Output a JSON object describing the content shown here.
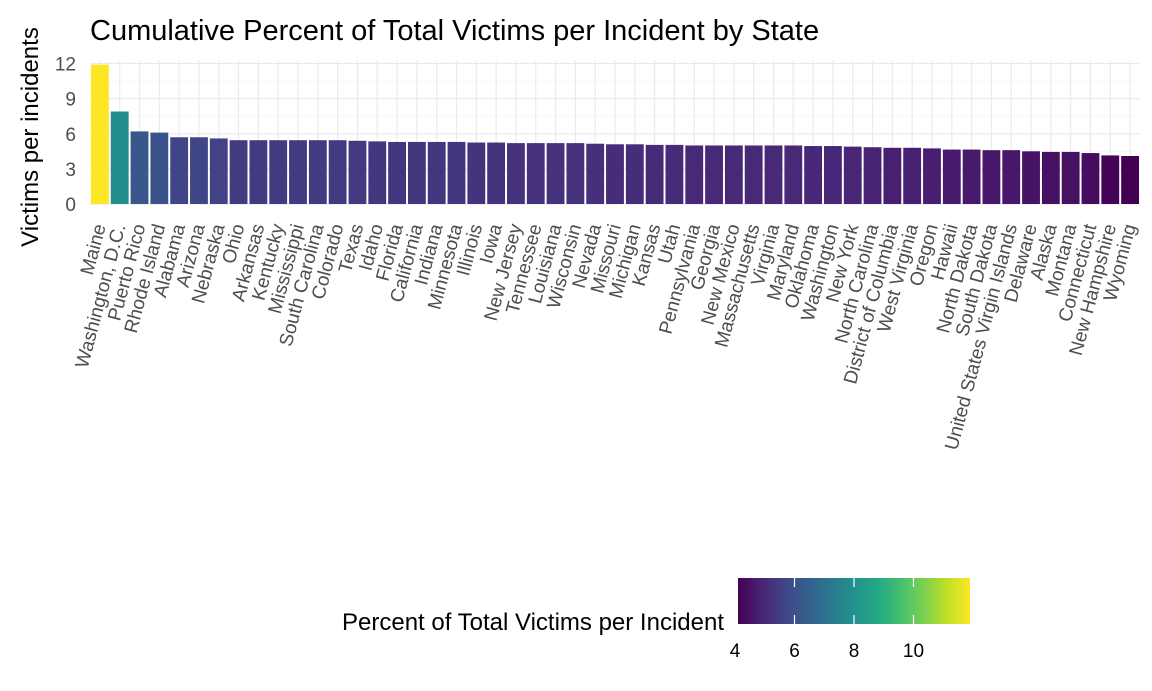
{
  "chart_data": {
    "type": "bar",
    "title": "Cumulative Percent of Total Victims per Incident by State",
    "xlabel": "",
    "ylabel": "Victims per incidents",
    "ylim": [
      0,
      12.3
    ],
    "yticks": [
      0,
      3,
      6,
      9,
      12
    ],
    "grid": true,
    "legend": {
      "title": "Percent of Total Victims per Incident",
      "placement": "bottom",
      "type": "colorbar",
      "colormap": "viridis",
      "range": [
        4.1,
        11.9
      ],
      "ticks": [
        4,
        6,
        8,
        10
      ]
    },
    "categories": [
      "Maine",
      "Washington, D.C.",
      "Puerto Rico",
      "Rhode Island",
      "Alabama",
      "Arizona",
      "Nebraska",
      "Ohio",
      "Arkansas",
      "Kentucky",
      "Mississippi",
      "South Carolina",
      "Colorado",
      "Texas",
      "Idaho",
      "Florida",
      "California",
      "Indiana",
      "Minnesota",
      "Illinois",
      "Iowa",
      "New Jersey",
      "Tennessee",
      "Louisiana",
      "Wisconsin",
      "Nevada",
      "Missouri",
      "Michigan",
      "Kansas",
      "Utah",
      "Pennsylvania",
      "Georgia",
      "New Mexico",
      "Massachusetts",
      "Virginia",
      "Maryland",
      "Oklahoma",
      "Washington",
      "New York",
      "North Carolina",
      "District of Columbia",
      "West Virginia",
      "Oregon",
      "Hawaii",
      "North Dakota",
      "South Dakota",
      "United States Virgin Islands",
      "Delaware",
      "Alaska",
      "Montana",
      "Connecticut",
      "New Hampshire",
      "Wyoming"
    ],
    "values": [
      11.9,
      7.9,
      6.2,
      6.1,
      5.7,
      5.7,
      5.6,
      5.45,
      5.45,
      5.45,
      5.45,
      5.45,
      5.45,
      5.4,
      5.35,
      5.3,
      5.3,
      5.3,
      5.3,
      5.25,
      5.25,
      5.2,
      5.2,
      5.2,
      5.2,
      5.15,
      5.1,
      5.1,
      5.05,
      5.05,
      5.0,
      5.0,
      5.0,
      5.0,
      5.0,
      5.0,
      4.95,
      4.95,
      4.9,
      4.85,
      4.8,
      4.8,
      4.75,
      4.65,
      4.65,
      4.6,
      4.6,
      4.5,
      4.45,
      4.45,
      4.35,
      4.15,
      4.1
    ]
  }
}
